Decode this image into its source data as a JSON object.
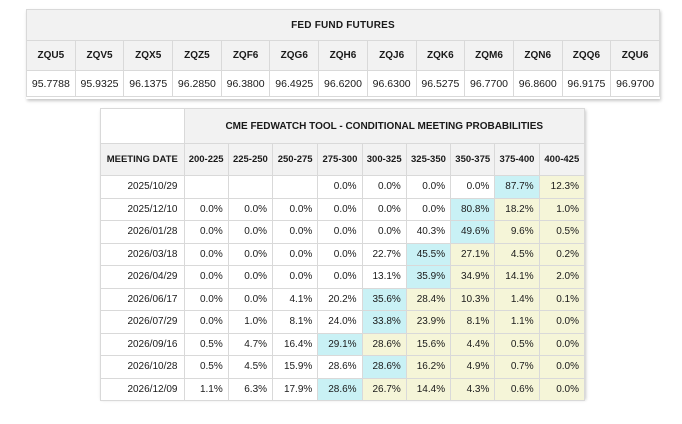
{
  "futures": {
    "title": "FED FUND FUTURES",
    "contracts": [
      "ZQU5",
      "ZQV5",
      "ZQX5",
      "ZQZ5",
      "ZQF6",
      "ZQG6",
      "ZQH6",
      "ZQJ6",
      "ZQK6",
      "ZQM6",
      "ZQN6",
      "ZQQ6",
      "ZQU6"
    ],
    "prices": [
      "95.7788",
      "95.9325",
      "96.1375",
      "96.2850",
      "96.3800",
      "96.4925",
      "96.6200",
      "96.6300",
      "96.5275",
      "96.7700",
      "96.8600",
      "96.9175",
      "96.9700"
    ]
  },
  "probabilities": {
    "title": "CME FEDWATCH TOOL - CONDITIONAL MEETING PROBABILITIES",
    "date_header": "MEETING DATE",
    "ranges": [
      "200-225",
      "225-250",
      "250-275",
      "275-300",
      "300-325",
      "325-350",
      "350-375",
      "375-400",
      "400-425"
    ],
    "rows": [
      {
        "date": "2025/10/29",
        "values": [
          "",
          "",
          "",
          "0.0%",
          "0.0%",
          "0.0%",
          "0.0%",
          "87.7%",
          "12.3%"
        ]
      },
      {
        "date": "2025/12/10",
        "values": [
          "0.0%",
          "0.0%",
          "0.0%",
          "0.0%",
          "0.0%",
          "0.0%",
          "80.8%",
          "18.2%",
          "1.0%"
        ]
      },
      {
        "date": "2026/01/28",
        "values": [
          "0.0%",
          "0.0%",
          "0.0%",
          "0.0%",
          "0.0%",
          "40.3%",
          "49.6%",
          "9.6%",
          "0.5%"
        ]
      },
      {
        "date": "2026/03/18",
        "values": [
          "0.0%",
          "0.0%",
          "0.0%",
          "0.0%",
          "22.7%",
          "45.5%",
          "27.1%",
          "4.5%",
          "0.2%"
        ]
      },
      {
        "date": "2026/04/29",
        "values": [
          "0.0%",
          "0.0%",
          "0.0%",
          "0.0%",
          "13.1%",
          "35.9%",
          "34.9%",
          "14.1%",
          "2.0%"
        ]
      },
      {
        "date": "2026/06/17",
        "values": [
          "0.0%",
          "0.0%",
          "4.1%",
          "20.2%",
          "35.6%",
          "28.4%",
          "10.3%",
          "1.4%",
          "0.1%"
        ]
      },
      {
        "date": "2026/07/29",
        "values": [
          "0.0%",
          "1.0%",
          "8.1%",
          "24.0%",
          "33.8%",
          "23.9%",
          "8.1%",
          "1.1%",
          "0.0%"
        ]
      },
      {
        "date": "2026/09/16",
        "values": [
          "0.5%",
          "4.7%",
          "16.4%",
          "29.1%",
          "28.6%",
          "15.6%",
          "4.4%",
          "0.5%",
          "0.0%"
        ]
      },
      {
        "date": "2026/10/28",
        "values": [
          "0.5%",
          "4.5%",
          "15.9%",
          "28.6%",
          "28.6%",
          "16.2%",
          "4.9%",
          "0.7%",
          "0.0%"
        ]
      },
      {
        "date": "2026/12/09",
        "values": [
          "1.1%",
          "6.3%",
          "17.9%",
          "28.6%",
          "26.7%",
          "14.4%",
          "4.3%",
          "0.6%",
          "0.0%"
        ]
      }
    ],
    "highlight_cyan": [
      [
        0,
        7
      ],
      [
        1,
        6
      ],
      [
        2,
        6
      ],
      [
        3,
        5
      ],
      [
        4,
        5
      ],
      [
        5,
        4
      ],
      [
        6,
        4
      ],
      [
        7,
        3
      ],
      [
        8,
        4
      ],
      [
        9,
        3
      ]
    ],
    "highlight_yellow_from_col": [
      [
        0,
        8
      ],
      [
        1,
        7
      ],
      [
        2,
        7
      ],
      [
        3,
        6
      ],
      [
        4,
        6
      ],
      [
        5,
        5
      ],
      [
        6,
        5
      ],
      [
        7,
        4
      ],
      [
        8,
        5
      ],
      [
        9,
        4
      ]
    ],
    "colors": {
      "cyan": "#c9f1f5",
      "yellow": "#f5f5d8",
      "header": "#f2f2f2",
      "border": "#d9d9d9"
    }
  }
}
